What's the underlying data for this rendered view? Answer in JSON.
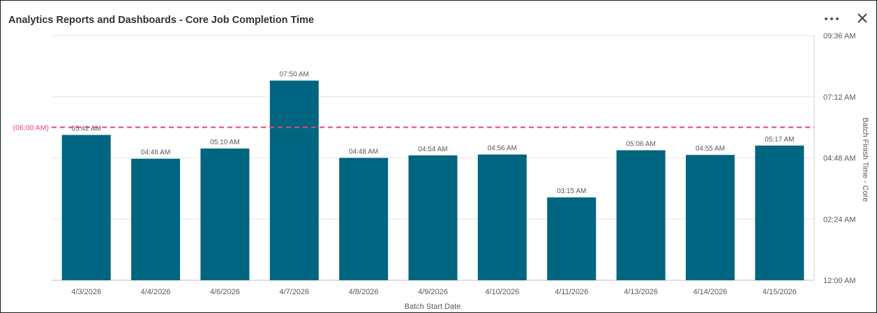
{
  "header": {
    "title": "Analytics Reports and Dashboards - Core Job Completion Time",
    "more_icon": "more-horizontal-icon",
    "close_icon": "close-icon"
  },
  "colors": {
    "bar": "#006580",
    "threshold": "#ee4466",
    "grid": "#e6e6e6",
    "axis_text": "#595959"
  },
  "chart_data": {
    "type": "bar",
    "categories": [
      "4/3/2026",
      "4/4/2026",
      "4/6/2026",
      "4/7/2026",
      "4/8/2026",
      "4/9/2026",
      "4/10/2026",
      "4/11/2026",
      "4/13/2026",
      "4/14/2026",
      "4/15/2026"
    ],
    "values": [
      5.7,
      4.7667,
      5.1667,
      7.8333,
      4.8,
      4.9,
      4.9333,
      3.25,
      5.1,
      4.9167,
      5.2833
    ],
    "value_labels": [
      "05:42 AM",
      "04:46 AM",
      "05:10 AM",
      "07:50 AM",
      "04:48 AM",
      "04:54 AM",
      "04:56 AM",
      "03:15 AM",
      "05:06 AM",
      "04:55 AM",
      "05:17 AM"
    ],
    "xlabel": "Batch Start Date",
    "ylabel": "Batch Finish Time - Core",
    "ylim": [
      0,
      9.6
    ],
    "y_ticks": [
      0,
      2.4,
      4.8,
      7.2,
      9.6
    ],
    "y_tick_labels": [
      "12:00 AM",
      "02:24 AM",
      "04:48 AM",
      "07:12 AM",
      "09:36 AM"
    ],
    "y_axis_side": "right",
    "grid": true,
    "threshold": {
      "value": 6.0,
      "label": "(06:00 AM)"
    }
  }
}
